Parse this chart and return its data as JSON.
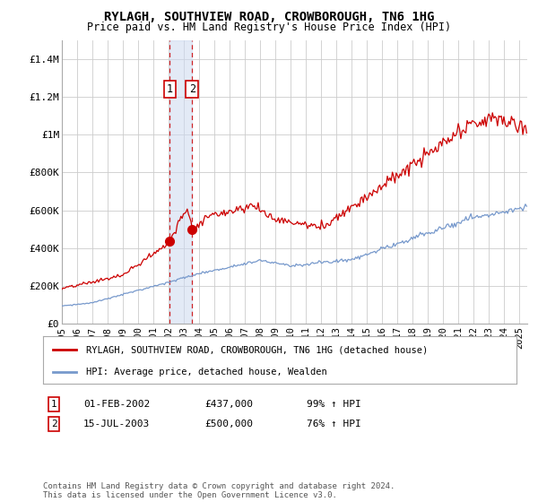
{
  "title": "RYLAGH, SOUTHVIEW ROAD, CROWBOROUGH, TN6 1HG",
  "subtitle": "Price paid vs. HM Land Registry's House Price Index (HPI)",
  "ylabel_ticks": [
    "£0",
    "£200K",
    "£400K",
    "£600K",
    "£800K",
    "£1M",
    "£1.2M",
    "£1.4M"
  ],
  "ytick_values": [
    0,
    200000,
    400000,
    600000,
    800000,
    1000000,
    1200000,
    1400000
  ],
  "ylim": [
    0,
    1500000
  ],
  "legend_line1": "RYLAGH, SOUTHVIEW ROAD, CROWBOROUGH, TN6 1HG (detached house)",
  "legend_line2": "HPI: Average price, detached house, Wealden",
  "sale1_date": "01-FEB-2002",
  "sale1_price": "£437,000",
  "sale1_hpi": "99% ↑ HPI",
  "sale1_year": 2002.08,
  "sale1_value": 437000,
  "sale2_date": "15-JUL-2003",
  "sale2_price": "£500,000",
  "sale2_hpi": "76% ↑ HPI",
  "sale2_year": 2003.54,
  "sale2_value": 500000,
  "red_color": "#cc0000",
  "blue_color": "#7799cc",
  "vline_color": "#cc0000",
  "box_color": "#ccd9f0",
  "grid_color": "#cccccc",
  "footer": "Contains HM Land Registry data © Crown copyright and database right 2024.\nThis data is licensed under the Open Government Licence v3.0.",
  "x_start": 1995.0,
  "x_end": 2025.5,
  "xtick_years": [
    1995,
    1996,
    1997,
    1998,
    1999,
    2000,
    2001,
    2002,
    2003,
    2004,
    2005,
    2006,
    2007,
    2008,
    2009,
    2010,
    2011,
    2012,
    2013,
    2014,
    2015,
    2016,
    2017,
    2018,
    2019,
    2020,
    2021,
    2022,
    2023,
    2024,
    2025
  ]
}
